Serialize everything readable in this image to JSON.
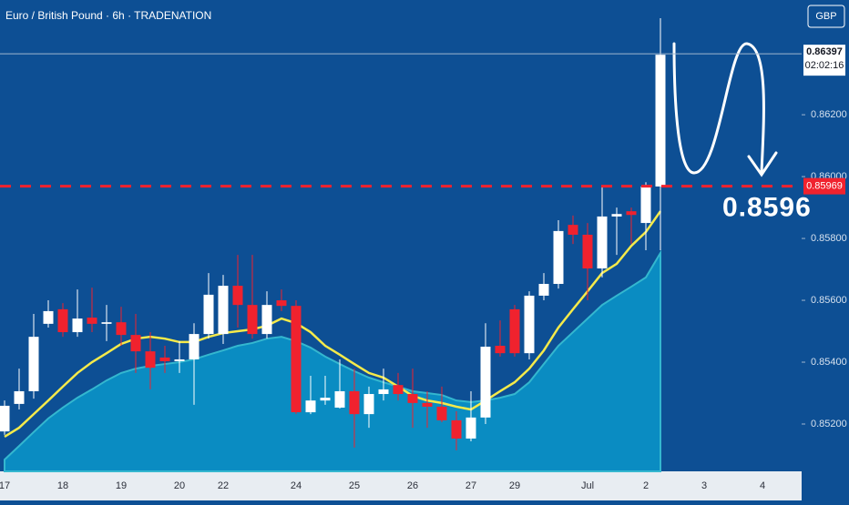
{
  "chart_data": {
    "type": "candlestick",
    "title": "Euro / British Pound · 6h · TRADENATION",
    "currency": "GBP",
    "categories": [
      "17",
      null,
      null,
      null,
      "18",
      null,
      null,
      null,
      "19",
      null,
      null,
      null,
      "20",
      null,
      null,
      "22",
      null,
      null,
      null,
      null,
      "24",
      null,
      null,
      null,
      "25",
      null,
      null,
      null,
      "26",
      null,
      null,
      null,
      "27",
      null,
      null,
      "29",
      null,
      null,
      null,
      null,
      "Jul",
      null,
      null,
      null,
      "2",
      null,
      null,
      null,
      "3",
      null,
      null,
      null,
      "4",
      null,
      null
    ],
    "open": [
      0.85176,
      0.85265,
      0.85306,
      0.85524,
      0.85571,
      0.85497,
      0.85544,
      0.85524,
      0.85529,
      0.85488,
      0.85435,
      0.85415,
      0.85403,
      0.85409,
      0.85491,
      0.85491,
      0.85647,
      0.85585,
      0.85491,
      0.856,
      0.85582,
      0.85238,
      0.85276,
      0.85253,
      0.85306,
      0.85232,
      0.85297,
      0.85326,
      0.85297,
      0.85268,
      0.85256,
      0.85212,
      0.85153,
      0.85221,
      0.85453,
      0.85571,
      0.85429,
      0.85615,
      0.85653,
      0.85844,
      0.85812,
      0.85703,
      0.85871,
      0.85888,
      0.8585,
      0.85968,
      null,
      null,
      null,
      null,
      null,
      null,
      null,
      null,
      null
    ],
    "high": [
      0.85276,
      0.85379,
      0.85556,
      0.856,
      0.85591,
      0.85635,
      0.85641,
      0.85585,
      0.85579,
      0.85556,
      0.85497,
      0.85453,
      0.85468,
      0.85526,
      0.85688,
      0.85682,
      0.85747,
      0.85747,
      0.85629,
      0.85635,
      0.856,
      0.85356,
      0.85356,
      0.85409,
      0.85379,
      0.85321,
      0.85379,
      0.85365,
      0.85379,
      0.85306,
      0.85321,
      0.85241,
      0.85306,
      0.85526,
      0.85535,
      0.85585,
      0.85629,
      0.85688,
      0.85859,
      0.85874,
      0.8585,
      0.85968,
      0.859,
      0.859,
      0.85982,
      0.86512,
      null,
      null,
      null,
      null,
      null,
      null,
      null,
      null,
      null
    ],
    "low": [
      0.85165,
      0.85247,
      0.85282,
      0.85512,
      0.85482,
      0.85482,
      0.85497,
      0.85468,
      0.85453,
      0.85365,
      0.85312,
      0.85365,
      0.85365,
      0.85262,
      0.85476,
      0.85459,
      0.85512,
      0.85476,
      0.85476,
      0.85565,
      0.85232,
      0.85232,
      0.85262,
      0.8525,
      0.85124,
      0.85188,
      0.85276,
      0.85276,
      0.85188,
      0.85188,
      0.85206,
      0.85115,
      0.85144,
      0.852,
      0.85418,
      0.85418,
      0.85409,
      0.856,
      0.85638,
      0.85782,
      0.856,
      0.85674,
      0.85747,
      0.85782,
      0.85762,
      0.85762,
      null,
      null,
      null,
      null,
      null,
      null,
      null,
      null,
      null
    ],
    "close": [
      0.85259,
      0.85306,
      0.85482,
      0.85565,
      0.85497,
      0.85541,
      0.85524,
      0.85529,
      0.85488,
      0.85435,
      0.85382,
      0.85403,
      0.85409,
      0.85491,
      0.85618,
      0.85647,
      0.85585,
      0.85491,
      0.85585,
      0.85582,
      0.85238,
      0.85276,
      0.85285,
      0.85306,
      0.85232,
      0.85297,
      0.85312,
      0.85297,
      0.85268,
      0.85256,
      0.85212,
      0.85153,
      0.85221,
      0.8545,
      0.85429,
      0.85429,
      0.85615,
      0.85653,
      0.85824,
      0.85812,
      0.85703,
      0.85871,
      0.85879,
      0.85876,
      0.85968,
      0.86394,
      null,
      null,
      null,
      null,
      null,
      null,
      null,
      null,
      null
    ],
    "up_color": "#ffffff",
    "down_color": "#f0222e",
    "overlays": [
      {
        "type": "area",
        "color": "#0a8cc2",
        "values": [
          0.85085,
          0.85129,
          0.85174,
          0.85218,
          0.85253,
          0.85285,
          0.85312,
          0.85341,
          0.85365,
          0.85379,
          0.85388,
          0.85394,
          0.854,
          0.85409,
          0.85424,
          0.85438,
          0.85453,
          0.85462,
          0.85476,
          0.85482,
          0.85468,
          0.85447,
          0.85418,
          0.85394,
          0.85371,
          0.8535,
          0.85335,
          0.85321,
          0.85306,
          0.853,
          0.85294,
          0.85276,
          0.85271,
          0.85276,
          0.85285,
          0.85297,
          0.85335,
          0.85394,
          0.85453,
          0.85497,
          0.85541,
          0.85585,
          0.85615,
          0.85644,
          0.85674,
          0.85753,
          null,
          null,
          null,
          null,
          null,
          null,
          null,
          null,
          null
        ]
      },
      {
        "type": "line",
        "color": "#f5ea4a",
        "values": [
          0.85159,
          0.85188,
          0.85232,
          0.85276,
          0.85321,
          0.85365,
          0.854,
          0.85429,
          0.85459,
          0.85476,
          0.85482,
          0.85476,
          0.85465,
          0.85465,
          0.85482,
          0.85494,
          0.855,
          0.85506,
          0.85518,
          0.85541,
          0.85526,
          0.85497,
          0.85453,
          0.85424,
          0.85394,
          0.85365,
          0.8535,
          0.85321,
          0.85291,
          0.85276,
          0.85268,
          0.85256,
          0.85247,
          0.85276,
          0.85306,
          0.85335,
          0.85379,
          0.85438,
          0.85512,
          0.85571,
          0.85629,
          0.85688,
          0.85718,
          0.85776,
          0.85821,
          0.85888,
          null,
          null,
          null,
          null,
          null,
          null,
          null,
          null,
          null
        ]
      }
    ],
    "ylim": [
      0.85047,
      0.86571
    ],
    "yticks": [
      {
        "value": 0.852,
        "label": "0.85200"
      },
      {
        "value": 0.854,
        "label": "0.85400"
      },
      {
        "value": 0.856,
        "label": "0.85600"
      },
      {
        "value": 0.858,
        "label": "0.85800"
      },
      {
        "value": 0.86,
        "label": "0.86000"
      },
      {
        "value": 0.862,
        "label": "0.86200"
      }
    ],
    "last_price": {
      "value": 0.86397,
      "label": "0.86397"
    },
    "countdown": "02:02:16",
    "level": {
      "value": 0.85969,
      "label": "0.85969",
      "color": "#f0222e"
    },
    "annotation": {
      "value": 0.8596,
      "label": "0.8596"
    }
  }
}
